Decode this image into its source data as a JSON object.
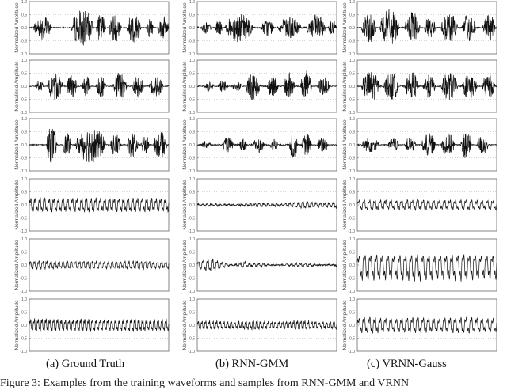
{
  "chart_data": {
    "type": "line",
    "layout": "6 rows x 3 columns of waveform panels",
    "columns": [
      {
        "caption": "(a) Ground Truth"
      },
      {
        "caption": "(b) RNN-GMM"
      },
      {
        "caption": "(c) VRNN-Gauss"
      }
    ],
    "ylabels": [
      "Normalized Amplitude",
      "Normalized Amplitude",
      "Normalized Amplitude",
      "Normalized Amplitude",
      "Normalized Amplitude",
      "Normalized Amplitude"
    ],
    "yticks": [
      "1.0",
      "0.5",
      "0.0",
      "-0.5",
      "-1.0"
    ],
    "ylim": [
      -1.0,
      1.0
    ],
    "panels": [
      [
        {
          "type": "bursts",
          "bursts": [
            [
              0.03,
              0.16,
              0.45
            ],
            [
              0.3,
              0.46,
              0.7
            ],
            [
              0.48,
              0.55,
              0.55
            ],
            [
              0.57,
              0.66,
              0.55
            ],
            [
              0.7,
              0.8,
              0.6
            ],
            [
              0.84,
              0.89,
              0.4
            ],
            [
              0.92,
              1.0,
              0.45
            ]
          ],
          "floor": 0.03
        },
        {
          "type": "bursts",
          "bursts": [
            [
              0.03,
              0.1,
              0.25
            ],
            [
              0.13,
              0.18,
              0.3
            ],
            [
              0.2,
              0.4,
              0.55
            ],
            [
              0.46,
              0.55,
              0.35
            ],
            [
              0.58,
              0.75,
              0.4
            ],
            [
              0.78,
              0.92,
              0.5
            ],
            [
              0.94,
              1.0,
              0.3
            ]
          ],
          "floor": 0.05
        },
        {
          "type": "bursts",
          "bursts": [
            [
              0.03,
              0.14,
              0.6
            ],
            [
              0.16,
              0.3,
              0.7
            ],
            [
              0.34,
              0.45,
              0.6
            ],
            [
              0.48,
              0.56,
              0.5
            ],
            [
              0.6,
              0.72,
              0.6
            ],
            [
              0.75,
              0.85,
              0.55
            ],
            [
              0.9,
              0.99,
              0.55
            ]
          ],
          "floor": 0.04
        }
      ],
      [
        {
          "type": "bursts",
          "bursts": [
            [
              0.04,
              0.1,
              0.25
            ],
            [
              0.13,
              0.24,
              0.55
            ],
            [
              0.27,
              0.34,
              0.5
            ],
            [
              0.38,
              0.44,
              0.4
            ],
            [
              0.48,
              0.55,
              0.45
            ],
            [
              0.6,
              0.7,
              0.55
            ],
            [
              0.74,
              0.82,
              0.45
            ],
            [
              0.86,
              0.96,
              0.4
            ]
          ],
          "floor": 0.03
        },
        {
          "type": "bursts",
          "bursts": [
            [
              0.05,
              0.12,
              0.2
            ],
            [
              0.15,
              0.22,
              0.25
            ],
            [
              0.25,
              0.32,
              0.2
            ],
            [
              0.35,
              0.45,
              0.55
            ],
            [
              0.5,
              0.58,
              0.45
            ],
            [
              0.62,
              0.7,
              0.55
            ],
            [
              0.74,
              0.82,
              0.6
            ],
            [
              0.86,
              0.95,
              0.35
            ]
          ],
          "floor": 0.03
        },
        {
          "type": "bursts",
          "bursts": [
            [
              0.03,
              0.16,
              0.6
            ],
            [
              0.19,
              0.3,
              0.55
            ],
            [
              0.34,
              0.44,
              0.55
            ],
            [
              0.47,
              0.56,
              0.45
            ],
            [
              0.6,
              0.72,
              0.55
            ],
            [
              0.75,
              0.86,
              0.5
            ],
            [
              0.89,
              0.99,
              0.45
            ]
          ],
          "floor": 0.04
        }
      ],
      [
        {
          "type": "bursts",
          "bursts": [
            [
              0.12,
              0.2,
              0.7
            ],
            [
              0.24,
              0.3,
              0.45
            ],
            [
              0.33,
              0.55,
              0.7
            ],
            [
              0.58,
              0.66,
              0.45
            ],
            [
              0.7,
              0.78,
              0.5
            ],
            [
              0.8,
              0.86,
              0.4
            ],
            [
              0.89,
              0.99,
              0.5
            ]
          ],
          "floor": 0.03
        },
        {
          "type": "bursts",
          "bursts": [
            [
              0.03,
              0.1,
              0.15
            ],
            [
              0.18,
              0.26,
              0.3
            ],
            [
              0.3,
              0.36,
              0.25
            ],
            [
              0.4,
              0.48,
              0.3
            ],
            [
              0.52,
              0.58,
              0.25
            ],
            [
              0.66,
              0.72,
              0.6
            ],
            [
              0.75,
              0.82,
              0.45
            ],
            [
              0.86,
              0.94,
              0.3
            ]
          ],
          "floor": 0.04
        },
        {
          "type": "bursts",
          "bursts": [
            [
              0.03,
              0.16,
              0.3
            ],
            [
              0.22,
              0.3,
              0.25
            ],
            [
              0.34,
              0.42,
              0.3
            ],
            [
              0.46,
              0.56,
              0.45
            ],
            [
              0.6,
              0.7,
              0.45
            ],
            [
              0.74,
              0.82,
              0.55
            ],
            [
              0.86,
              0.94,
              0.4
            ]
          ],
          "floor": 0.03
        }
      ],
      [
        {
          "type": "periodic",
          "amp": 0.28,
          "cycles": 30,
          "env": 0.1
        },
        {
          "type": "periodic",
          "amp": 0.14,
          "cycles": 32,
          "env": 0.5,
          "ramp": true
        },
        {
          "type": "periodic",
          "amp": 0.2,
          "cycles": 26,
          "env": 0.1
        }
      ],
      [
        {
          "type": "periodic",
          "amp": 0.16,
          "cycles": 34,
          "env": 0.2
        },
        {
          "type": "periodic",
          "amp": 0.2,
          "cycles": 30,
          "env": 0.9,
          "decay": true
        },
        {
          "type": "periodic",
          "amp": 0.4,
          "cycles": 24,
          "env": 0.1,
          "asym": true
        }
      ],
      [
        {
          "type": "periodic",
          "amp": 0.25,
          "cycles": 36,
          "env": 0.15
        },
        {
          "type": "periodic",
          "amp": 0.18,
          "cycles": 38,
          "env": 0.3
        },
        {
          "type": "periodic",
          "amp": 0.32,
          "cycles": 26,
          "env": 0.2
        }
      ]
    ]
  },
  "footer_text": "Figure 3: Examples from the training waveforms and samples from RNN-GMM and VRNN"
}
